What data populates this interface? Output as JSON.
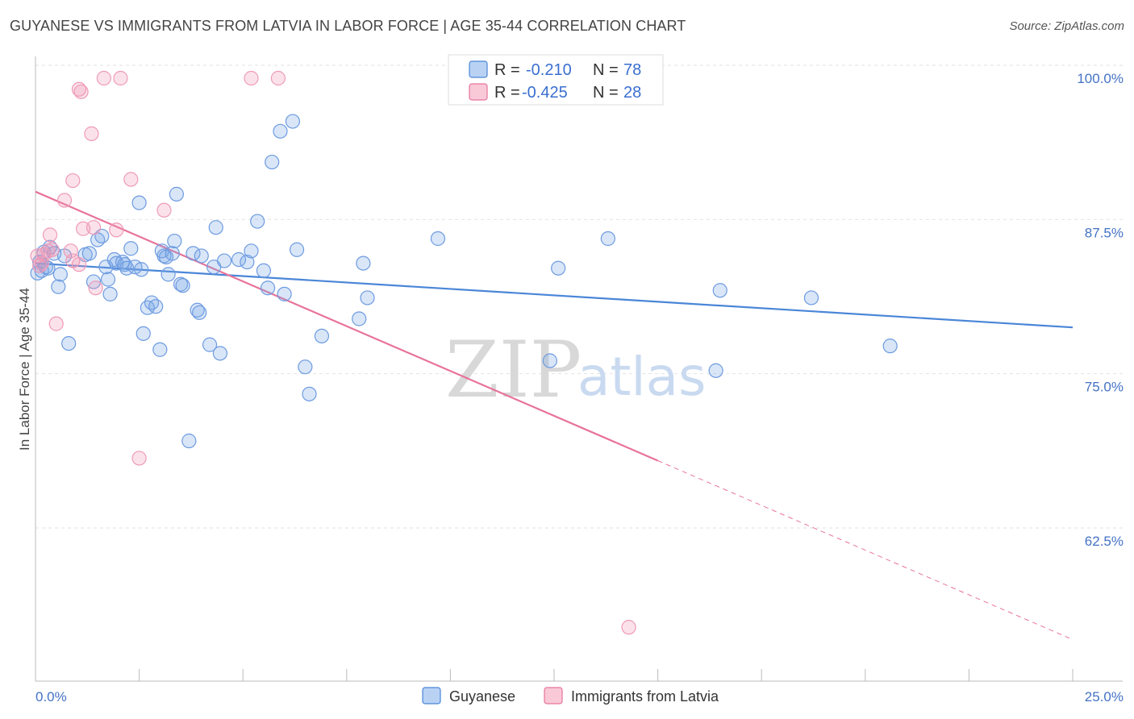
{
  "title": "GUYANESE VS IMMIGRANTS FROM LATVIA IN LABOR FORCE | AGE 35-44 CORRELATION CHART",
  "source": "Source: ZipAtlas.com",
  "watermark": {
    "zip": "ZIP",
    "atlas": "atlas"
  },
  "legend_top": {
    "items": [
      {
        "r_label": "R =",
        "r_value": "-0.210",
        "n_label": "N =",
        "n_value": "78",
        "color": "#4a86d8"
      },
      {
        "r_label": "R =",
        "r_value": "-0.425",
        "n_label": "N =",
        "n_value": "28",
        "color": "#e8739a"
      }
    ]
  },
  "chart_data": {
    "type": "scatter",
    "title": "GUYANESE VS IMMIGRANTS FROM LATVIA IN LABOR FORCE | AGE 35-44 CORRELATION CHART",
    "xlabel": "",
    "ylabel": "In Labor Force | Age 35-44",
    "xlim": [
      0,
      25
    ],
    "ylim": [
      50.5,
      101.5
    ],
    "x_tick_labels": [
      "0.0%",
      "25.0%"
    ],
    "y_ticks": [
      62.5,
      75.0,
      87.5,
      100.0
    ],
    "y_tick_labels": [
      "62.5%",
      "75.0%",
      "87.5%",
      "100.0%"
    ],
    "grid": true,
    "legend_placement": "bottom",
    "series": [
      {
        "name": "Guyanese",
        "color": "#4a86d8",
        "trend": {
          "x": [
            0,
            25
          ],
          "y": [
            85.0,
            79.8
          ]
        },
        "points": [
          [
            0.1,
            85.1
          ],
          [
            0.15,
            84.4
          ],
          [
            0.2,
            85.9
          ],
          [
            0.25,
            84.7
          ],
          [
            0.35,
            86.3
          ],
          [
            0.45,
            85.8
          ],
          [
            0.55,
            83.1
          ],
          [
            0.6,
            84.1
          ],
          [
            0.7,
            85.6
          ],
          [
            0.8,
            78.5
          ],
          [
            1.2,
            85.7
          ],
          [
            1.3,
            85.8
          ],
          [
            1.4,
            83.5
          ],
          [
            1.5,
            86.9
          ],
          [
            1.6,
            87.2
          ],
          [
            1.7,
            84.7
          ],
          [
            1.75,
            83.7
          ],
          [
            1.8,
            82.5
          ],
          [
            1.9,
            85.3
          ],
          [
            1.95,
            85.0
          ],
          [
            2.1,
            85.1
          ],
          [
            2.15,
            84.9
          ],
          [
            2.2,
            84.6
          ],
          [
            2.3,
            86.2
          ],
          [
            2.4,
            84.7
          ],
          [
            2.5,
            89.9
          ],
          [
            2.55,
            84.5
          ],
          [
            2.6,
            79.3
          ],
          [
            2.7,
            81.4
          ],
          [
            2.8,
            81.8
          ],
          [
            2.9,
            81.5
          ],
          [
            3.0,
            78.0
          ],
          [
            3.05,
            86.0
          ],
          [
            3.1,
            85.6
          ],
          [
            3.15,
            85.5
          ],
          [
            3.2,
            84.1
          ],
          [
            3.3,
            85.8
          ],
          [
            3.35,
            86.8
          ],
          [
            3.4,
            90.6
          ],
          [
            3.5,
            83.3
          ],
          [
            3.55,
            83.2
          ],
          [
            3.7,
            70.6
          ],
          [
            3.8,
            85.8
          ],
          [
            3.9,
            81.2
          ],
          [
            3.95,
            81.0
          ],
          [
            4.0,
            85.6
          ],
          [
            4.2,
            78.4
          ],
          [
            4.3,
            84.7
          ],
          [
            4.35,
            87.9
          ],
          [
            4.45,
            77.7
          ],
          [
            4.55,
            85.2
          ],
          [
            4.9,
            85.3
          ],
          [
            5.1,
            85.1
          ],
          [
            5.2,
            86.0
          ],
          [
            5.35,
            88.4
          ],
          [
            5.5,
            84.4
          ],
          [
            5.6,
            83.0
          ],
          [
            5.7,
            93.2
          ],
          [
            5.9,
            95.7
          ],
          [
            6.0,
            82.5
          ],
          [
            6.2,
            96.5
          ],
          [
            6.3,
            86.1
          ],
          [
            6.5,
            76.6
          ],
          [
            6.6,
            74.4
          ],
          [
            6.9,
            79.1
          ],
          [
            7.8,
            80.5
          ],
          [
            8.0,
            82.2
          ],
          [
            7.9,
            85.0
          ],
          [
            9.7,
            87.0
          ],
          [
            12.4,
            77.1
          ],
          [
            12.6,
            84.6
          ],
          [
            13.8,
            87.0
          ],
          [
            16.5,
            82.8
          ],
          [
            16.4,
            76.3
          ],
          [
            18.7,
            82.2
          ],
          [
            20.6,
            78.3
          ],
          [
            0.05,
            84.2
          ],
          [
            0.3,
            84.6
          ]
        ]
      },
      {
        "name": "Immigrants from Latvia",
        "color": "#e8739a",
        "trend": {
          "x": [
            0,
            15
          ],
          "y": [
            90.8,
            69.0
          ]
        },
        "trend_dashed": {
          "x": [
            15,
            25
          ],
          "y": [
            69.0,
            54.5
          ]
        },
        "points": [
          [
            0.05,
            85.6
          ],
          [
            0.1,
            84.8
          ],
          [
            0.15,
            85.0
          ],
          [
            0.2,
            85.7
          ],
          [
            0.3,
            86.0
          ],
          [
            0.35,
            87.3
          ],
          [
            0.5,
            80.1
          ],
          [
            0.7,
            90.1
          ],
          [
            0.85,
            86.0
          ],
          [
            0.9,
            85.2
          ],
          [
            0.9,
            91.7
          ],
          [
            1.05,
            84.9
          ],
          [
            1.05,
            99.1
          ],
          [
            1.1,
            98.9
          ],
          [
            1.15,
            87.8
          ],
          [
            1.35,
            95.5
          ],
          [
            1.4,
            87.9
          ],
          [
            1.45,
            83.0
          ],
          [
            1.65,
            100.0
          ],
          [
            1.95,
            87.7
          ],
          [
            2.05,
            100.0
          ],
          [
            2.3,
            91.8
          ],
          [
            2.5,
            69.2
          ],
          [
            3.1,
            89.3
          ],
          [
            5.2,
            100.0
          ],
          [
            5.85,
            100.0
          ],
          [
            14.3,
            55.5
          ],
          [
            0.4,
            86.1
          ]
        ]
      }
    ]
  }
}
